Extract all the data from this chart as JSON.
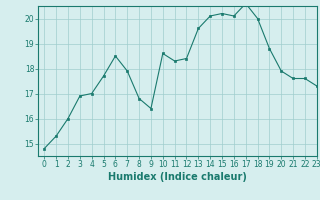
{
  "x": [
    0,
    1,
    2,
    3,
    4,
    5,
    6,
    7,
    8,
    9,
    10,
    11,
    12,
    13,
    14,
    15,
    16,
    17,
    18,
    19,
    20,
    21,
    22,
    23
  ],
  "y": [
    14.8,
    15.3,
    16.0,
    16.9,
    17.0,
    17.7,
    18.5,
    17.9,
    16.8,
    16.4,
    18.6,
    18.3,
    18.4,
    19.6,
    20.1,
    20.2,
    20.1,
    20.6,
    20.0,
    18.8,
    17.9,
    17.6,
    17.6,
    17.3
  ],
  "line_color": "#1a7a6e",
  "marker_color": "#1a7a6e",
  "bg_color": "#d6eeee",
  "grid_color": "#a0cece",
  "xlabel": "Humidex (Indice chaleur)",
  "xlim": [
    -0.5,
    23
  ],
  "ylim": [
    14.5,
    20.5
  ],
  "yticks": [
    15,
    16,
    17,
    18,
    19,
    20
  ],
  "xticks": [
    0,
    1,
    2,
    3,
    4,
    5,
    6,
    7,
    8,
    9,
    10,
    11,
    12,
    13,
    14,
    15,
    16,
    17,
    18,
    19,
    20,
    21,
    22,
    23
  ],
  "font_size": 5.5,
  "label_font_size": 7.0
}
